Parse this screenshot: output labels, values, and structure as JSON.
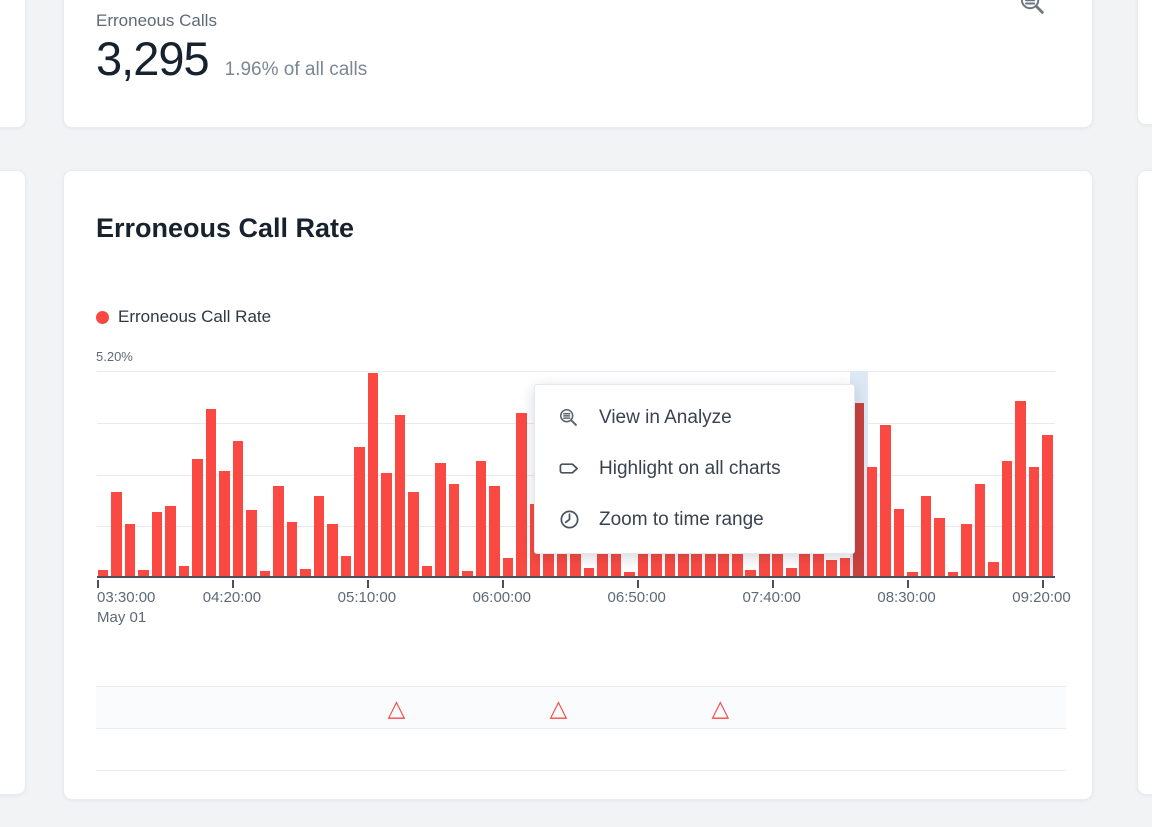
{
  "page": {
    "background": "#f1f3f5"
  },
  "stat_card": {
    "title": "Erroneous Calls",
    "value": "3,295",
    "subtitle": "1.96% of all calls",
    "icon": "analyze-magnifier-icon"
  },
  "chart_card": {
    "title": "Erroneous Call Rate",
    "legend": [
      {
        "label": "Erroneous Call Rate",
        "color": "#f94942"
      }
    ],
    "y_max_label": "5.20%",
    "context_menu": {
      "items": [
        {
          "icon": "analyze-magnifier-icon",
          "label": "View in Analyze"
        },
        {
          "icon": "tag-icon",
          "label": "Highlight on all charts"
        },
        {
          "icon": "clock-icon",
          "label": "Zoom to time range"
        }
      ]
    }
  },
  "chart_data": {
    "type": "bar",
    "title": "Erroneous Call Rate",
    "series_name": "Erroneous Call Rate",
    "unit": "%",
    "ylim": [
      0,
      5.2
    ],
    "y_gridlines": [
      5.2,
      3.9,
      2.6,
      1.3
    ],
    "bar_interval_minutes": 5,
    "x_tick_labels": [
      "03:30:00",
      "04:20:00",
      "05:10:00",
      "06:00:00",
      "06:50:00",
      "07:40:00",
      "08:30:00",
      "09:20:00"
    ],
    "x_date_label": "May 01",
    "values": [
      0.15,
      2.1,
      1.3,
      0.15,
      1.6,
      1.75,
      0.25,
      2.95,
      4.2,
      2.65,
      3.4,
      1.65,
      0.12,
      2.25,
      1.35,
      0.18,
      2.0,
      1.3,
      0.5,
      3.25,
      5.1,
      2.6,
      4.05,
      2.1,
      0.25,
      2.85,
      2.3,
      0.12,
      2.9,
      2.25,
      0.45,
      4.1,
      1.8,
      1.5,
      2.2,
      1.2,
      0.2,
      1.6,
      1.9,
      0.1,
      1.4,
      1.7,
      2.1,
      1.3,
      1.8,
      1.5,
      2.0,
      1.6,
      0.15,
      1.9,
      1.4,
      0.2,
      1.7,
      1.2,
      0.4,
      0.45,
      4.35,
      2.75,
      3.8,
      1.68,
      0.1,
      2.0,
      1.45,
      0.1,
      1.3,
      2.3,
      0.35,
      2.9,
      4.4,
      2.75,
      3.55
    ],
    "selected_bar_index": 56,
    "bar_color": "#f94942",
    "selected_bar_color": "#c8423e",
    "highlight_color": "#dce8f5",
    "grid_color": "#e7eaee",
    "anomaly_marker_indices": [
      22,
      34,
      46
    ],
    "anomaly_marker_color": "#f94942",
    "legend_position": "top-left",
    "grid": true
  }
}
